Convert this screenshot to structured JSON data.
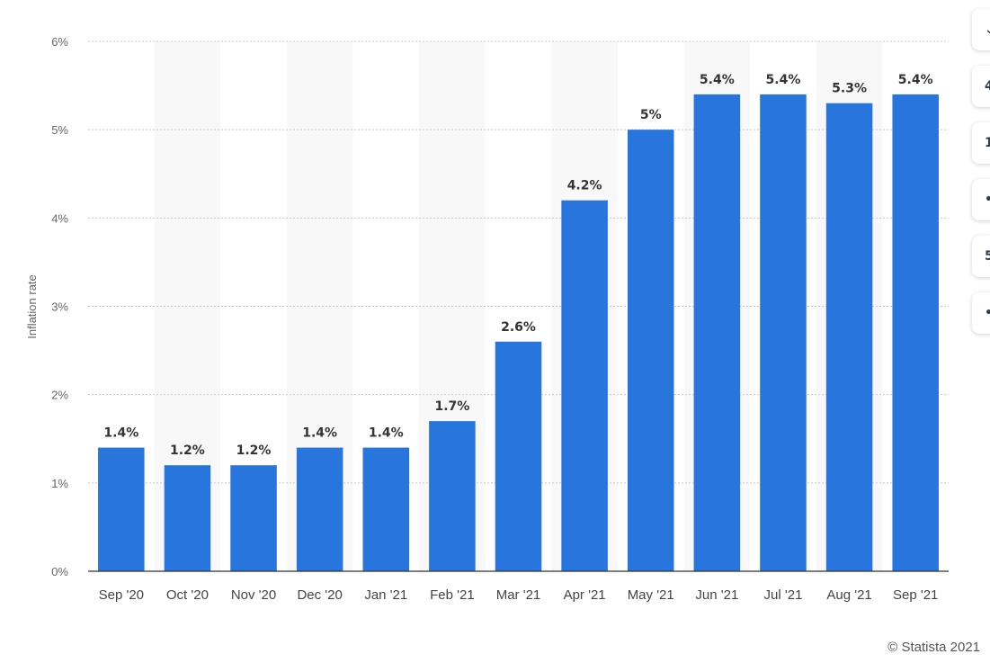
{
  "chart_data": {
    "type": "bar",
    "categories": [
      "Sep '20",
      "Oct '20",
      "Nov '20",
      "Dec '20",
      "Jan '21",
      "Feb '21",
      "Mar '21",
      "Apr '21",
      "May '21",
      "Jun '21",
      "Jul '21",
      "Aug '21",
      "Sep '21"
    ],
    "values": [
      1.4,
      1.2,
      1.2,
      1.4,
      1.4,
      1.7,
      2.6,
      4.2,
      5,
      5.4,
      5.4,
      5.3,
      5.4
    ],
    "data_labels": [
      "1.4%",
      "1.2%",
      "1.2%",
      "1.4%",
      "1.4%",
      "1.7%",
      "2.6%",
      "4.2%",
      "5%",
      "5.4%",
      "5.4%",
      "5.3%",
      "5.4%"
    ],
    "ylabel": "Inflation rate",
    "xlabel": "",
    "ylim": [
      0,
      6
    ],
    "yticks": [
      0,
      1,
      2,
      3,
      4,
      5,
      6
    ],
    "ytick_labels": [
      "0%",
      "1%",
      "2%",
      "3%",
      "4%",
      "5%",
      "6%"
    ],
    "grid": true,
    "alternating_column_shading": true,
    "bar_color": "#2876dd",
    "shade_color": "#f8f8f8",
    "grid_color": "#c8c8c8",
    "axis_color": "#333333"
  },
  "credit": "© Statista 2021",
  "side_tools": [
    {
      "icon": "chevron-down-icon",
      "glyph": "⌄"
    },
    {
      "icon": "truncated-tool-icon",
      "glyph": "4"
    },
    {
      "icon": "truncated-tool-icon",
      "glyph": "1"
    },
    {
      "icon": "truncated-tool-icon",
      "glyph": "•"
    },
    {
      "icon": "truncated-tool-icon",
      "glyph": "5"
    },
    {
      "icon": "truncated-tool-icon",
      "glyph": "•"
    }
  ]
}
